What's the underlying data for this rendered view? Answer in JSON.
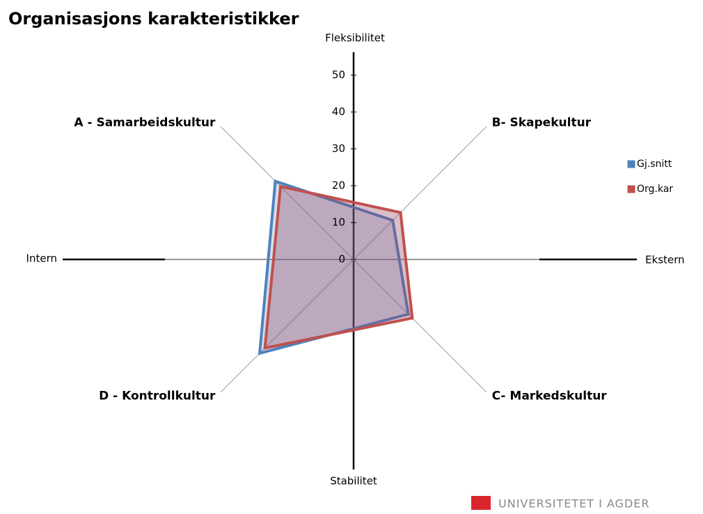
{
  "chart_data": {
    "type": "radar",
    "title": "Organisasjons karakteristikker",
    "categories": [
      "A - Samarbeidskultur",
      "B- Skapekultur",
      "C- Markedskultur",
      "D - Kontrollkultur"
    ],
    "series": [
      {
        "name": "Gj.snitt",
        "color": "#4f81bd",
        "values": [
          30,
          15,
          21,
          36
        ]
      },
      {
        "name": "Org.kar",
        "color": "#c0504d",
        "values": [
          28,
          18,
          22.5,
          34
        ]
      }
    ],
    "rlim": [
      0,
      50
    ],
    "rticks": [
      0,
      10,
      20,
      30,
      40,
      50
    ],
    "axis_labels": {
      "top": "Fleksibilitet",
      "right": "Ekstern",
      "bottom": "Stabilitet",
      "left": "Intern"
    },
    "legend": "right"
  },
  "footer": {
    "logo": "UNIVERSITETET I AGDER"
  }
}
